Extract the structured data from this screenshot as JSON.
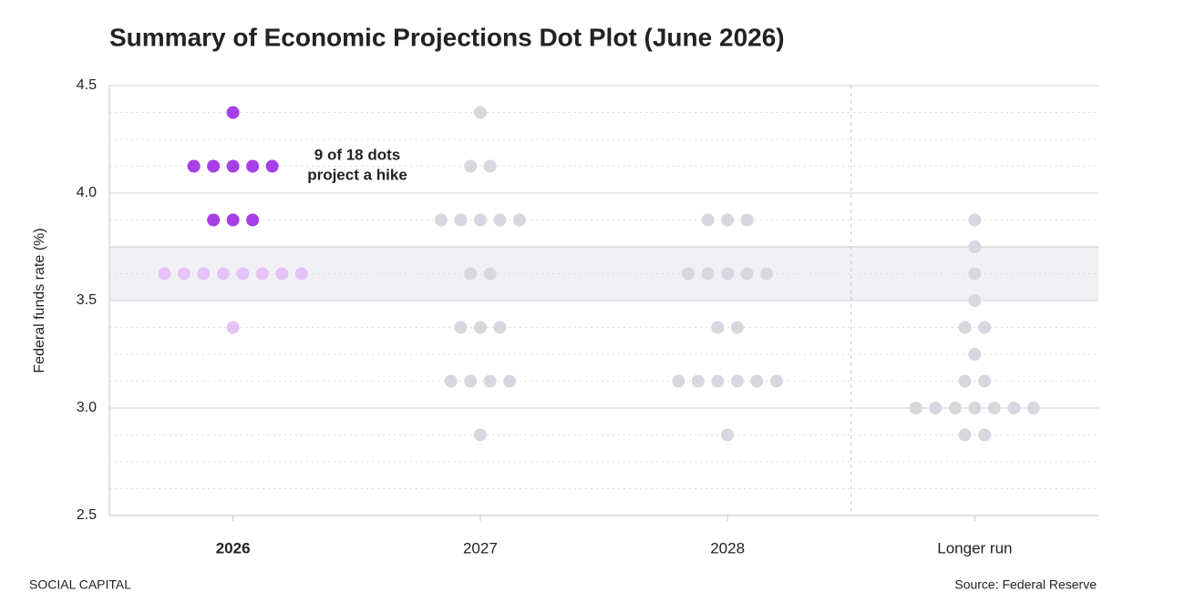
{
  "chart_data": {
    "type": "dot",
    "title": "Summary of Economic Projections Dot Plot (June 2026)",
    "ylabel": "Federal funds rate (%)",
    "categories": [
      "2026",
      "2027",
      "2028",
      "Longer run"
    ],
    "dots": [
      [
        4.375,
        4.125,
        4.125,
        4.125,
        4.125,
        4.125,
        3.875,
        3.875,
        3.875,
        3.625,
        3.625,
        3.625,
        3.625,
        3.625,
        3.625,
        3.625,
        3.625,
        3.375
      ],
      [
        4.375,
        4.125,
        4.125,
        3.875,
        3.875,
        3.875,
        3.875,
        3.875,
        3.625,
        3.625,
        3.375,
        3.375,
        3.375,
        3.125,
        3.125,
        3.125,
        3.125,
        2.875
      ],
      [
        3.875,
        3.875,
        3.875,
        3.625,
        3.625,
        3.625,
        3.625,
        3.625,
        3.375,
        3.375,
        3.125,
        3.125,
        3.125,
        3.125,
        3.125,
        3.125,
        2.875
      ],
      [
        3.875,
        3.75,
        3.625,
        3.5,
        3.375,
        3.375,
        3.25,
        3.125,
        3.125,
        3.0,
        3.0,
        3.0,
        3.0,
        3.0,
        3.0,
        3.0,
        2.875,
        2.875
      ]
    ],
    "ylim": [
      2.5,
      4.5
    ],
    "yticks": [
      2.5,
      {
        "value": 3,
        "label": "3.0"
      },
      3.5,
      {
        "value": 4,
        "label": "4.0"
      },
      4.5
    ],
    "minor_yticks": [
      2.625,
      2.75,
      2.875,
      3.125,
      3.25,
      3.375,
      3.625,
      3.875,
      4.125,
      4.25,
      4.375
    ],
    "band": [
      3.5,
      3.75
    ],
    "band_color": "#f1f1f5",
    "highlight_category": 0,
    "hike_color": "#a63fe6",
    "highlight_low_color": "#e5c3f8",
    "dot_color": "#d7d7df",
    "separator_before_category": 3,
    "grid": true,
    "annotation": [
      "9 of 18 dots",
      "project a hike"
    ],
    "footer_left": "SOCIAL CAPITAL",
    "footer_right": "Source: Federal Reserve"
  }
}
